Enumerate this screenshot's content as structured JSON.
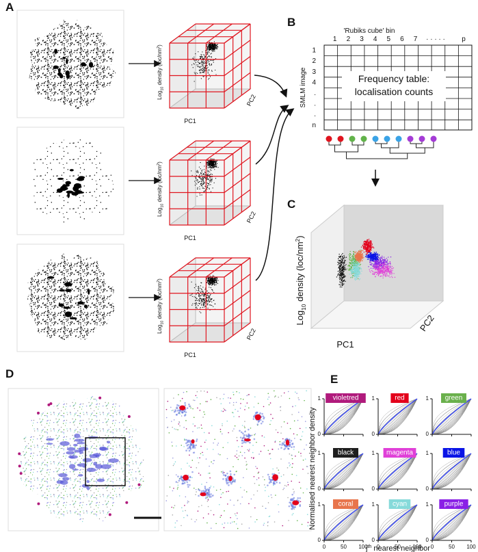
{
  "panels": {
    "A": {
      "letter": "A",
      "ylabel": {
        "main": "Log",
        "sub": "10",
        "rest": " density (loc/nm",
        "sup": "2",
        "end": ")"
      },
      "xlabel": "PC1",
      "zlabel": "PC2"
    },
    "B": {
      "letter": "B",
      "bin_title": "'Rubiks cube' bin",
      "columns": [
        "1",
        "2",
        "3",
        "4",
        "5",
        "6",
        "7",
        "· · · · ·",
        "p"
      ],
      "rows": [
        "1",
        "2",
        "3",
        "4",
        ".",
        ".",
        ".",
        "n"
      ],
      "row_title": "SMLM image",
      "table_text": [
        "Frequency table:",
        "localisation counts"
      ],
      "leaf_colors": [
        "#e0141e",
        "#e0141e",
        "#62b34a",
        "#62b34a",
        "#3aa3e6",
        "#3aa3e6",
        "#3aa3e6",
        "#a43bd6",
        "#a43bd6",
        "#a43bd6"
      ]
    },
    "C": {
      "letter": "C",
      "ylabel": {
        "main": "Log",
        "sub": "10",
        "rest": " density (loc/nm",
        "sup": "2",
        "end": ")"
      },
      "xlabel": "PC1",
      "zlabel": "PC2"
    },
    "D": {
      "letter": "D"
    },
    "E": {
      "letter": "E",
      "ylabel": "Normalised nearest neighbor density",
      "xlabel": {
        "main": "j",
        "sup": "th",
        "rest": " nearest neighbor"
      },
      "xlim": [
        0,
        100
      ],
      "ylim": [
        0,
        1
      ],
      "xticks": [
        0,
        50,
        100
      ],
      "yticks": [
        0,
        1
      ],
      "clusters": [
        {
          "name": "violetred",
          "color": "#b01a7c"
        },
        {
          "name": "red",
          "color": "#e3001b"
        },
        {
          "name": "green",
          "color": "#6ab04c"
        },
        {
          "name": "black",
          "color": "#1e1e1e"
        },
        {
          "name": "magenta",
          "color": "#e040d8"
        },
        {
          "name": "blue",
          "color": "#0a14e6"
        },
        {
          "name": "coral",
          "color": "#e8754c"
        },
        {
          "name": "cyan",
          "color": "#86dada"
        },
        {
          "name": "purple",
          "color": "#8a20e6"
        }
      ]
    }
  }
}
